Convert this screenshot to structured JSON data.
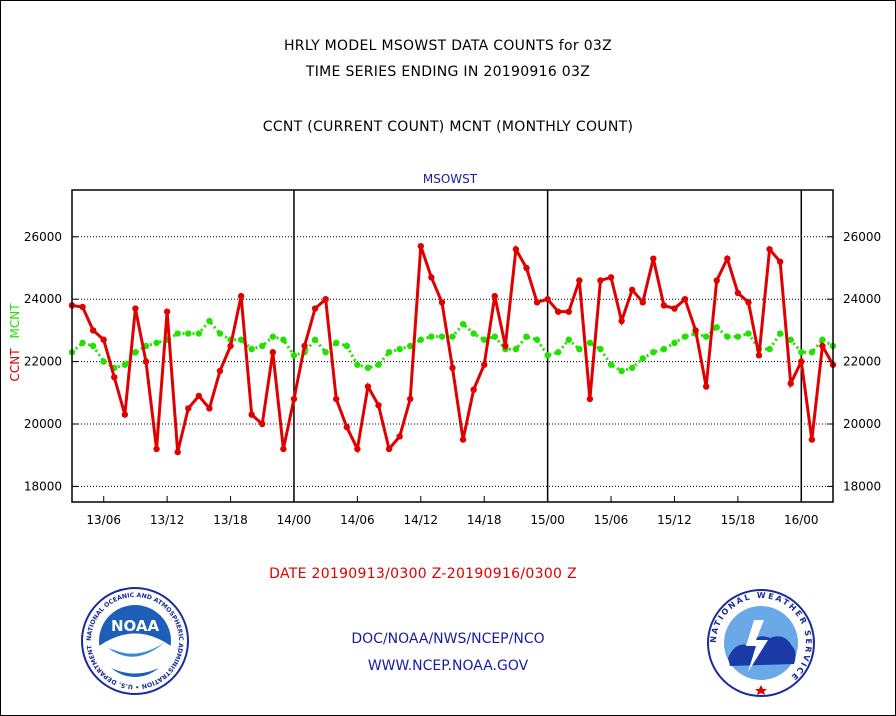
{
  "header": {
    "title_line1": "HRLY MODEL MSOWST DATA COUNTS for 03Z",
    "title_line2": "TIME SERIES ENDING IN 20190916 03Z",
    "title_line3": "CCNT (CURRENT COUNT) MCNT (MONTHLY COUNT)"
  },
  "footer": {
    "date_range": "DATE 20190913/0300 Z-20190916/0300 Z",
    "org": "DOC/NOAA/NWS/NCEP/NCO",
    "url": "WWW.NCEP.NOAA.GOV"
  },
  "logos": {
    "left": {
      "word": "NOAA",
      "ring_text": "NATIONAL OCEANIC AND ATMOSPHERIC ADMINISTRATION • U.S. DEPARTMENT OF COMMERCE"
    },
    "right": {
      "ring_text": "NATIONAL WEATHER SERVICE"
    }
  },
  "colors": {
    "ccnt": "#e00000",
    "mcnt": "#22e000",
    "axis_label_ccnt": "#e00000",
    "axis_label_mcnt": "#22e000",
    "plot_title": "#1a1aa6"
  },
  "chart_data": {
    "type": "line",
    "title": "MSOWST",
    "ylabel_left": [
      "CCNT",
      "MCNT"
    ],
    "ylim": [
      17500,
      27500
    ],
    "y_ticks": [
      18000,
      20000,
      22000,
      24000,
      26000
    ],
    "y_tick_labels": [
      "18000",
      "20000",
      "22000",
      "24000",
      "26000"
    ],
    "x_ticks": [
      {
        "label": "13/06",
        "hour": 6
      },
      {
        "label": "13/12",
        "hour": 12
      },
      {
        "label": "13/18",
        "hour": 18
      },
      {
        "label": "14/00",
        "hour": 24
      },
      {
        "label": "14/06",
        "hour": 30
      },
      {
        "label": "14/12",
        "hour": 36
      },
      {
        "label": "14/18",
        "hour": 42
      },
      {
        "label": "15/00",
        "hour": 48
      },
      {
        "label": "15/06",
        "hour": 54
      },
      {
        "label": "15/12",
        "hour": 60
      },
      {
        "label": "15/18",
        "hour": 66
      },
      {
        "label": "16/00",
        "hour": 72
      }
    ],
    "day_boundaries_hours": [
      24,
      48,
      72
    ],
    "x_range_hours": [
      3,
      75
    ],
    "grid": true,
    "series": [
      {
        "name": "CCNT",
        "values": [
          23800,
          23750,
          23000,
          22700,
          21500,
          20300,
          23700,
          22000,
          19200,
          23600,
          19100,
          20500,
          20900,
          20500,
          21700,
          22500,
          24100,
          20300,
          20000,
          22300,
          19200,
          20800,
          22500,
          23700,
          24000,
          20800,
          19900,
          19200,
          21200,
          20600,
          19200,
          19600,
          20800,
          25700,
          24700,
          23900,
          21800,
          19500,
          21100,
          21900,
          24100,
          22500,
          25600,
          25000,
          23900,
          24000,
          23600,
          23600,
          24600,
          20800,
          24600,
          24700,
          23300,
          24300,
          23900,
          25300,
          23800,
          23700,
          24000,
          23000,
          21200,
          24600,
          25300,
          24200,
          23900,
          22200,
          25600,
          25200,
          21300,
          22000,
          19500,
          22500,
          21900
        ]
      },
      {
        "name": "MCNT",
        "values": [
          22300,
          22600,
          22500,
          22000,
          21800,
          21900,
          22300,
          22500,
          22600,
          22700,
          22900,
          22900,
          22900,
          23300,
          22900,
          22700,
          22700,
          22400,
          22500,
          22800,
          22700,
          22200,
          22300,
          22700,
          22300,
          22600,
          22500,
          21900,
          21800,
          21900,
          22300,
          22400,
          22500,
          22700,
          22800,
          22800,
          22800,
          23200,
          22900,
          22700,
          22800,
          22400,
          22400,
          22800,
          22700,
          22200,
          22300,
          22700,
          22400,
          22600,
          22400,
          21900,
          21700,
          21800,
          22100,
          22300,
          22400,
          22600,
          22800,
          22900,
          22800,
          23100,
          22800,
          22800,
          22900,
          22400,
          22400,
          22900,
          22700,
          22300,
          22300,
          22700,
          22500
        ]
      }
    ]
  }
}
